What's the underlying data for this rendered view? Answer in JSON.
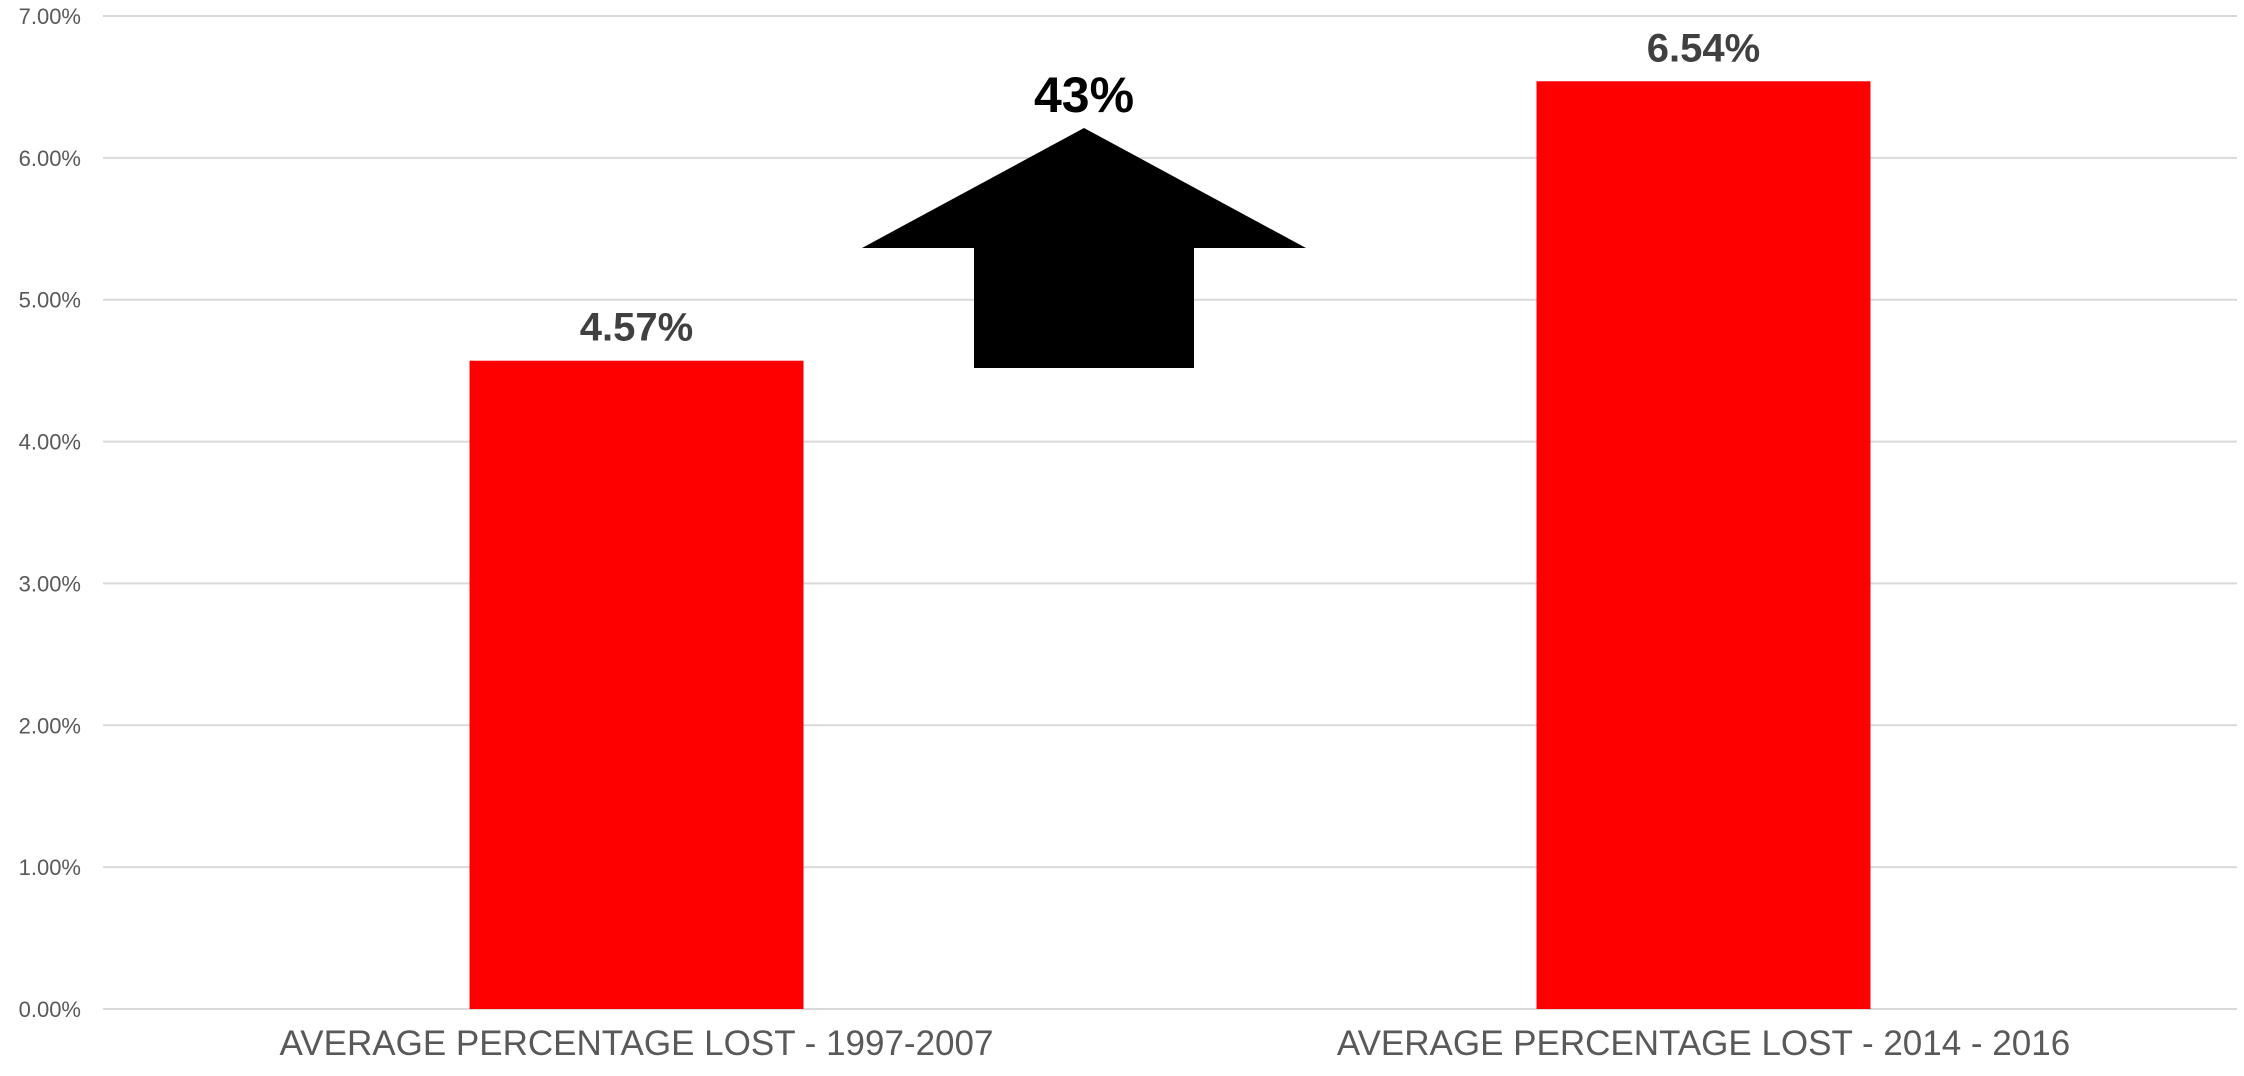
{
  "chart_data": {
    "type": "bar",
    "categories": [
      "AVERAGE PERCENTAGE LOST - 1997-2007",
      "AVERAGE PERCENTAGE LOST - 2014 - 2016"
    ],
    "values": [
      4.57,
      6.54
    ],
    "value_labels": [
      "4.57%",
      "6.54%"
    ],
    "ylim": [
      0,
      7
    ],
    "yticks": [
      0,
      1,
      2,
      3,
      4,
      5,
      6,
      7
    ],
    "ytick_labels": [
      "0.00%",
      "1.00%",
      "2.00%",
      "3.00%",
      "4.00%",
      "5.00%",
      "6.00%",
      "7.00%"
    ],
    "grid": true,
    "legend": "none",
    "bar_color": "#ff0000",
    "annotation": {
      "text": "43%",
      "icon": "up-arrow-icon",
      "color": "#000000"
    }
  }
}
